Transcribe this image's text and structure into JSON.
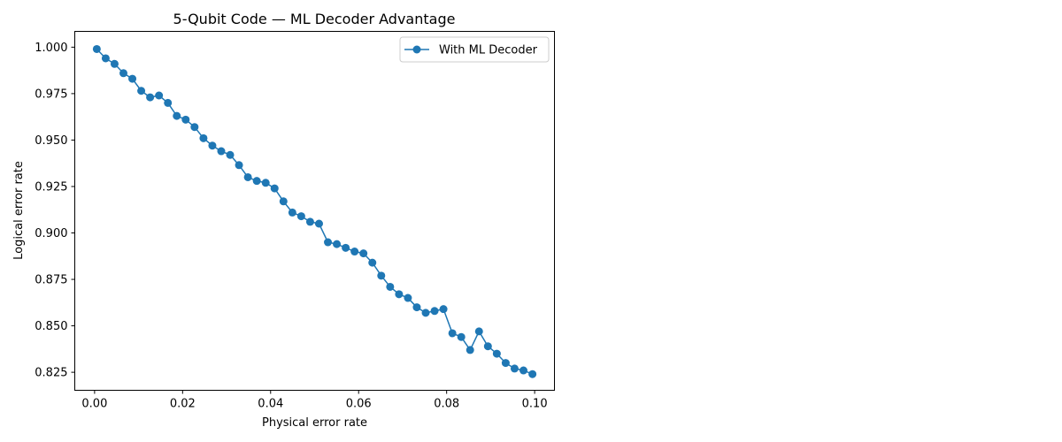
{
  "chart_data": {
    "type": "line",
    "title": "5-Qubit Code — ML Decoder Advantage",
    "xlabel": "Physical error rate",
    "ylabel": "Logical error rate",
    "xlim": [
      -0.0045,
      0.1045
    ],
    "ylim": [
      0.8153,
      1.0085
    ],
    "xticks": [
      0.0,
      0.02,
      0.04,
      0.06,
      0.08,
      0.1
    ],
    "xtick_labels": [
      "0.00",
      "0.02",
      "0.04",
      "0.06",
      "0.08",
      "0.10"
    ],
    "yticks": [
      0.825,
      0.85,
      0.875,
      0.9,
      0.925,
      0.95,
      0.975,
      1.0
    ],
    "ytick_labels": [
      "0.825",
      "0.850",
      "0.875",
      "0.900",
      "0.925",
      "0.950",
      "0.975",
      "1.000"
    ],
    "grid": false,
    "legend": {
      "position": "upper right"
    },
    "series": [
      {
        "name": "With ML Decoder",
        "color": "#1f77b4",
        "marker": "circle",
        "x": [
          0.0005,
          0.00252,
          0.00454,
          0.00656,
          0.00858,
          0.0106,
          0.01262,
          0.01464,
          0.01666,
          0.01868,
          0.0207,
          0.02272,
          0.02474,
          0.02676,
          0.02878,
          0.0308,
          0.03282,
          0.03484,
          0.03686,
          0.03888,
          0.0409,
          0.04292,
          0.04494,
          0.04696,
          0.04898,
          0.051,
          0.05302,
          0.05504,
          0.05706,
          0.05908,
          0.0611,
          0.06312,
          0.06514,
          0.06716,
          0.06918,
          0.0712,
          0.07322,
          0.07524,
          0.07726,
          0.07928,
          0.0813,
          0.08332,
          0.08534,
          0.08736,
          0.08938,
          0.0914,
          0.09342,
          0.09544,
          0.09746,
          0.0995
        ],
        "y": [
          0.999,
          0.994,
          0.991,
          0.986,
          0.983,
          0.9765,
          0.973,
          0.974,
          0.97,
          0.963,
          0.961,
          0.957,
          0.951,
          0.947,
          0.944,
          0.942,
          0.9365,
          0.93,
          0.928,
          0.927,
          0.924,
          0.917,
          0.911,
          0.909,
          0.906,
          0.905,
          0.895,
          0.894,
          0.892,
          0.89,
          0.889,
          0.884,
          0.877,
          0.871,
          0.867,
          0.865,
          0.86,
          0.857,
          0.858,
          0.859,
          0.846,
          0.844,
          0.837,
          0.847,
          0.839,
          0.835,
          0.83,
          0.827,
          0.826,
          0.824
        ]
      }
    ]
  }
}
